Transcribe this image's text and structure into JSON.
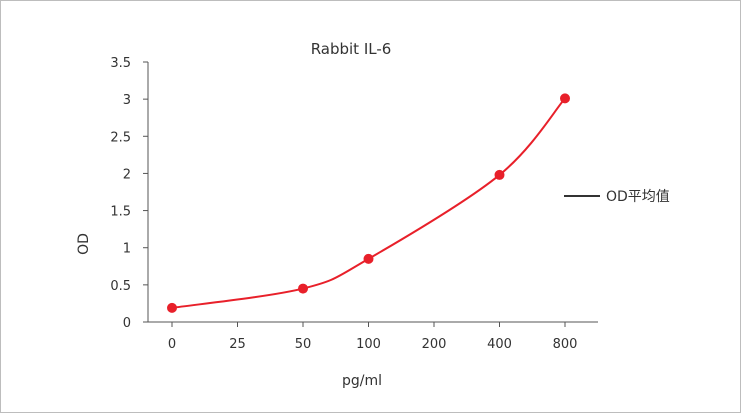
{
  "chart_data": {
    "type": "line",
    "title": "Rabbit IL-6",
    "xlabel": "pg/ml",
    "ylabel": "OD",
    "categories": [
      "0",
      "25",
      "50",
      "100",
      "200",
      "400",
      "800"
    ],
    "ylim": [
      0,
      3.5
    ],
    "yticks": [
      "0",
      "0.5",
      "1",
      "1.5",
      "2",
      "2.5",
      "3",
      "3.5"
    ],
    "series": [
      {
        "name": "OD平均值",
        "color": "#e8202a",
        "points": [
          {
            "x": "0",
            "y": 0.19
          },
          {
            "x": "50",
            "y": 0.45
          },
          {
            "x": "100",
            "y": 0.85
          },
          {
            "x": "400",
            "y": 1.98
          },
          {
            "x": "800",
            "y": 3.01
          }
        ]
      }
    ],
    "legend_placement": "right",
    "grid": false
  }
}
